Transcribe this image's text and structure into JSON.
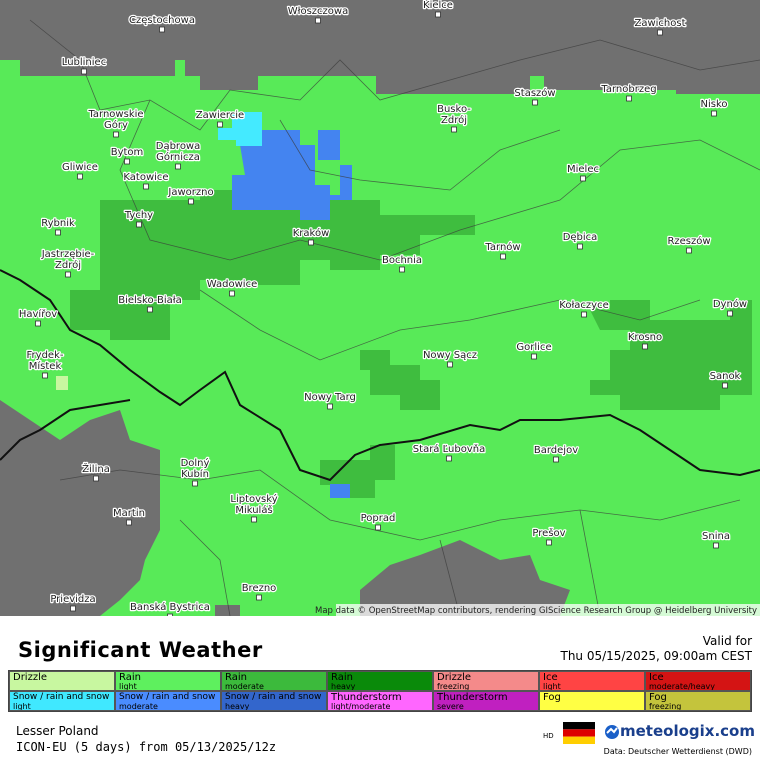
{
  "map": {
    "cities": [
      {
        "lines": [
          "Częstochowa"
        ]
      },
      {
        "lines": [
          "Włoszczowa"
        ]
      },
      {
        "lines": [
          "Kielce"
        ]
      },
      {
        "lines": [
          "Zawichost"
        ]
      },
      {
        "lines": [
          "Lubliniec"
        ]
      },
      {
        "lines": [
          "Staszów"
        ]
      },
      {
        "lines": [
          "Tarnobrzeg"
        ]
      },
      {
        "lines": [
          "Busko-",
          "Zdrój"
        ]
      },
      {
        "lines": [
          "Nisko"
        ]
      },
      {
        "lines": [
          "Tarnowskie",
          "Góry"
        ]
      },
      {
        "lines": [
          "Zawiercie"
        ]
      },
      {
        "lines": [
          "Bytom"
        ]
      },
      {
        "lines": [
          "Dąbrowa",
          "Górnicza"
        ]
      },
      {
        "lines": [
          "Gliwice"
        ]
      },
      {
        "lines": [
          "Katowice"
        ]
      },
      {
        "lines": [
          "Mielec"
        ]
      },
      {
        "lines": [
          "Jaworzno"
        ]
      },
      {
        "lines": [
          "Tychy"
        ]
      },
      {
        "lines": [
          "Rybnik"
        ]
      },
      {
        "lines": [
          "Kraków"
        ]
      },
      {
        "lines": [
          "Dębica"
        ]
      },
      {
        "lines": [
          "Rzeszów"
        ]
      },
      {
        "lines": [
          "Tarnów"
        ]
      },
      {
        "lines": [
          "Jastrzębie-",
          "Zdrój"
        ]
      },
      {
        "lines": [
          "Bochnia"
        ]
      },
      {
        "lines": [
          "Wadowice"
        ]
      },
      {
        "lines": [
          "Bielsko-Biała"
        ]
      },
      {
        "lines": [
          "Kołaczyce"
        ]
      },
      {
        "lines": [
          "Dynów"
        ]
      },
      {
        "lines": [
          "Havířov"
        ]
      },
      {
        "lines": [
          "Krosno"
        ]
      },
      {
        "lines": [
          "Gorlice"
        ]
      },
      {
        "lines": [
          "Nowy Sącz"
        ]
      },
      {
        "lines": [
          "Frydek-",
          "Místek"
        ]
      },
      {
        "lines": [
          "Sanok"
        ]
      },
      {
        "lines": [
          "Nowy Targ"
        ]
      },
      {
        "lines": [
          "Stará Ľubovňa"
        ]
      },
      {
        "lines": [
          "Bardejov"
        ]
      },
      {
        "lines": [
          "Žilina"
        ]
      },
      {
        "lines": [
          "Dolný",
          "Kubín"
        ]
      },
      {
        "lines": [
          "Liptovský",
          "Mikuláš"
        ]
      },
      {
        "lines": [
          "Martin"
        ]
      },
      {
        "lines": [
          "Poprad"
        ]
      },
      {
        "lines": [
          "Prešov"
        ]
      },
      {
        "lines": [
          "Snina"
        ]
      },
      {
        "lines": [
          "Brezno"
        ]
      },
      {
        "lines": [
          "Prievidza"
        ]
      },
      {
        "lines": [
          "Banská Bystrica"
        ]
      }
    ],
    "attribution": "Map data © OpenStreetMap contributors, rendering GIScience Research Group @ Heidelberg University"
  },
  "header": {
    "title": "Significant Weather",
    "valid_label": "Valid for",
    "valid_time": "Thu 05/15/2025, 09:00am CEST"
  },
  "legend": [
    {
      "name": "Drizzle",
      "sub": "",
      "color": "#c8f7a0"
    },
    {
      "name": "Rain",
      "sub": "light",
      "color": "#5ef05e"
    },
    {
      "name": "Rain",
      "sub": "moderate",
      "color": "#3cba3c"
    },
    {
      "name": "Rain",
      "sub": "heavy",
      "color": "#0a8a0a"
    },
    {
      "name": "Drizzle",
      "sub": "freezing",
      "color": "#f48a8a"
    },
    {
      "name": "Ice",
      "sub": "light",
      "color": "#ff4444"
    },
    {
      "name": "Ice",
      "sub": "moderate/heavy",
      "color": "#d41414"
    },
    {
      "name": "Snow / rain and snow",
      "sub": "light",
      "color": "#40e8ff"
    },
    {
      "name": "Snow / rain and snow",
      "sub": "moderate",
      "color": "#4a8cff"
    },
    {
      "name": "Snow / rain and snow",
      "sub": "heavy",
      "color": "#3366cc"
    },
    {
      "name": "Thunderstorm",
      "sub": "light/moderate",
      "color": "#ff66ff"
    },
    {
      "name": "Thunderstorm",
      "sub": "severe",
      "color": "#c020c0"
    },
    {
      "name": "Fog",
      "sub": "",
      "color": "#ffff44"
    },
    {
      "name": "Fog",
      "sub": "freezing",
      "color": "#c4c43c"
    }
  ],
  "footer": {
    "region": "Lesser Poland",
    "model": "ICON-EU (5 days) from 05/13/2025/12z",
    "hd": "HD",
    "brand": "meteologix.com",
    "source": "Data: Deutscher Wetterdienst (DWD)"
  }
}
